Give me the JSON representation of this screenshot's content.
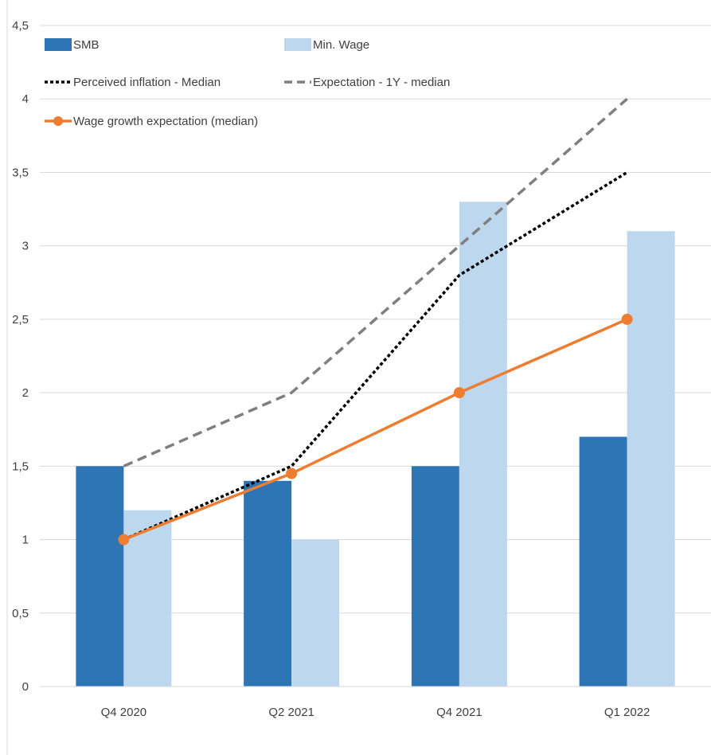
{
  "chart_data": {
    "type": "bar",
    "categories": [
      "Q4 2020",
      "Q2 2021",
      "Q4 2021",
      "Q1 2022"
    ],
    "ylim": [
      0,
      4.5
    ],
    "yticks": [
      "0",
      "0,5",
      "1",
      "1,5",
      "2",
      "2,5",
      "3",
      "3,5",
      "4",
      "4,5"
    ],
    "grid": true,
    "legend_position": "top-left",
    "series": [
      {
        "name": "SMB",
        "kind": "bar",
        "color": "#2e75b6",
        "values": [
          1.5,
          1.4,
          1.5,
          1.7
        ]
      },
      {
        "name": "Min. Wage",
        "kind": "bar",
        "color": "#bdd7ee",
        "values": [
          1.2,
          1.0,
          3.3,
          3.1
        ]
      },
      {
        "name": "Perceived inflation - Median",
        "kind": "line",
        "style": "dotted",
        "color": "#000000",
        "values": [
          1.0,
          1.5,
          2.8,
          3.5
        ]
      },
      {
        "name": "Expectation - 1Y - median",
        "kind": "line",
        "style": "dashed",
        "color": "#7f7f7f",
        "values": [
          1.5,
          2.0,
          3.0,
          4.0
        ]
      },
      {
        "name": "Wage growth expectation (median)",
        "kind": "line",
        "style": "solid-markers",
        "color": "#ed7d31",
        "values": [
          1.0,
          1.45,
          2.0,
          2.5
        ]
      }
    ]
  }
}
